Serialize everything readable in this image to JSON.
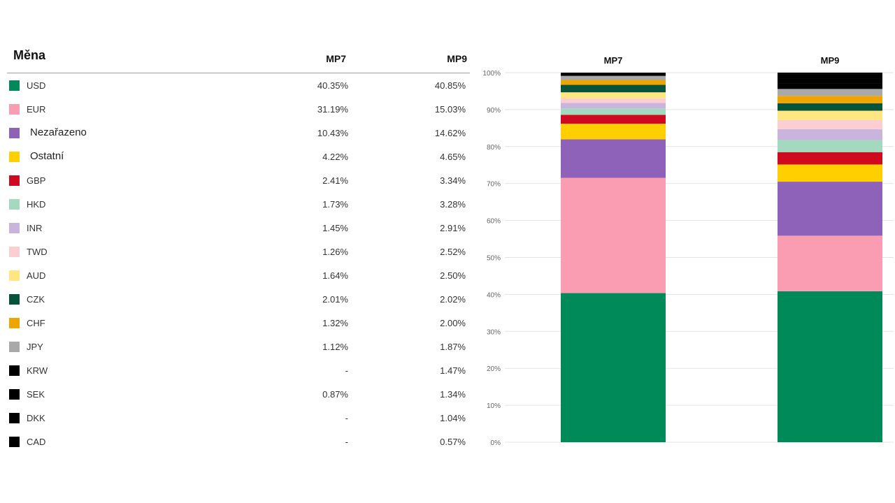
{
  "table": {
    "title": "Měna",
    "col_mp7": "MP7",
    "col_mp9": "MP9",
    "rows": [
      {
        "label": "USD",
        "mp7": "40.35%",
        "mp9": "40.85%",
        "color": "#008a5a"
      },
      {
        "label": "EUR",
        "mp7": "31.19%",
        "mp9": "15.03%",
        "color": "#fa9db2"
      },
      {
        "label": "Nezařazeno",
        "mp7": "10.43%",
        "mp9": "14.62%",
        "color": "#8e62b8"
      },
      {
        "label": "Ostatní",
        "mp7": "4.22%",
        "mp9": "4.65%",
        "color": "#ffcf00"
      },
      {
        "label": "GBP",
        "mp7": "2.41%",
        "mp9": "3.34%",
        "color": "#d00a1e"
      },
      {
        "label": "HKD",
        "mp7": "1.73%",
        "mp9": "3.28%",
        "color": "#a3d9bf"
      },
      {
        "label": "INR",
        "mp7": "1.45%",
        "mp9": "2.91%",
        "color": "#c9b4de"
      },
      {
        "label": "TWD",
        "mp7": "1.26%",
        "mp9": "2.52%",
        "color": "#fccdd1"
      },
      {
        "label": "AUD",
        "mp7": "1.64%",
        "mp9": "2.50%",
        "color": "#ffe680"
      },
      {
        "label": "CZK",
        "mp7": "2.01%",
        "mp9": "2.02%",
        "color": "#06533b"
      },
      {
        "label": "CHF",
        "mp7": "1.32%",
        "mp9": "2.00%",
        "color": "#eea500"
      },
      {
        "label": "JPY",
        "mp7": "1.12%",
        "mp9": "1.87%",
        "color": "#a9a9a9"
      },
      {
        "label": "KRW",
        "mp7": "-",
        "mp9": "1.47%",
        "color": "#000000"
      },
      {
        "label": "SEK",
        "mp7": "0.87%",
        "mp9": "1.34%",
        "color": "#000000"
      },
      {
        "label": "DKK",
        "mp7": "-",
        "mp9": "1.04%",
        "color": "#000000"
      },
      {
        "label": "CAD",
        "mp7": "-",
        "mp9": "0.57%",
        "color": "#000000"
      }
    ]
  },
  "chart_data": {
    "type": "bar",
    "stacked": true,
    "categories": [
      "MP7",
      "MP9"
    ],
    "ylim": [
      0,
      100
    ],
    "yticks": [
      0,
      10,
      20,
      30,
      40,
      50,
      60,
      70,
      80,
      90,
      100
    ],
    "ytick_labels": [
      "0%",
      "10%",
      "20%",
      "30%",
      "40%",
      "50%",
      "60%",
      "70%",
      "80%",
      "90%",
      "100%"
    ],
    "series": [
      {
        "name": "USD",
        "color": "#008a5a",
        "values": [
          40.35,
          40.85
        ]
      },
      {
        "name": "EUR",
        "color": "#fa9db2",
        "values": [
          31.19,
          15.03
        ]
      },
      {
        "name": "Nezařazeno",
        "color": "#8e62b8",
        "values": [
          10.43,
          14.62
        ]
      },
      {
        "name": "Ostatní",
        "color": "#ffcf00",
        "values": [
          4.22,
          4.65
        ]
      },
      {
        "name": "GBP",
        "color": "#d00a1e",
        "values": [
          2.41,
          3.34
        ]
      },
      {
        "name": "HKD",
        "color": "#a3d9bf",
        "values": [
          1.73,
          3.28
        ]
      },
      {
        "name": "INR",
        "color": "#c9b4de",
        "values": [
          1.45,
          2.91
        ]
      },
      {
        "name": "TWD",
        "color": "#fccdd1",
        "values": [
          1.26,
          2.52
        ]
      },
      {
        "name": "AUD",
        "color": "#ffe680",
        "values": [
          1.64,
          2.5
        ]
      },
      {
        "name": "CZK",
        "color": "#06533b",
        "values": [
          2.01,
          2.02
        ]
      },
      {
        "name": "CHF",
        "color": "#eea500",
        "values": [
          1.32,
          2.0
        ]
      },
      {
        "name": "JPY",
        "color": "#a9a9a9",
        "values": [
          1.12,
          1.87
        ]
      },
      {
        "name": "KRW",
        "color": "#000000",
        "values": [
          0,
          1.47
        ]
      },
      {
        "name": "SEK",
        "color": "#000000",
        "values": [
          0.87,
          1.34
        ]
      },
      {
        "name": "DKK",
        "color": "#000000",
        "values": [
          0,
          1.04
        ]
      },
      {
        "name": "CAD",
        "color": "#000000",
        "values": [
          0,
          0.57
        ]
      }
    ]
  }
}
